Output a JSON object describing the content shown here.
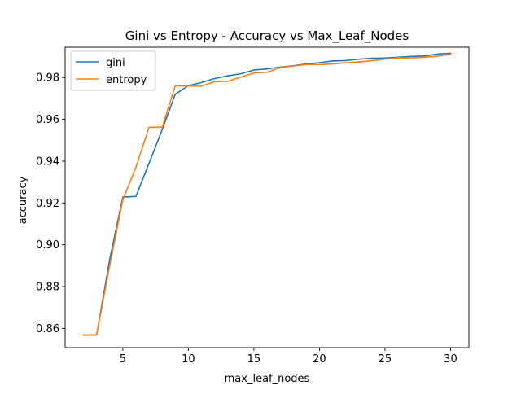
{
  "chart_data": {
    "type": "line",
    "title": "Gini vs Entropy - Accuracy vs Max_Leaf_Nodes",
    "xlabel": "max_leaf_nodes",
    "ylabel": "accuracy",
    "xlim": [
      0.6,
      31.4
    ],
    "ylim": [
      0.8508,
      0.9945
    ],
    "x_ticks": [
      5,
      10,
      15,
      20,
      25,
      30
    ],
    "x_tick_labels": [
      "5",
      "10",
      "15",
      "20",
      "25",
      "30"
    ],
    "y_ticks": [
      0.86,
      0.88,
      0.9,
      0.92,
      0.94,
      0.96,
      0.98
    ],
    "y_tick_labels": [
      "0.86",
      "0.88",
      "0.90",
      "0.92",
      "0.94",
      "0.96",
      "0.98"
    ],
    "grid": false,
    "legend_position": "top-left",
    "x": [
      2,
      3,
      4,
      5,
      6,
      7,
      8,
      9,
      10,
      11,
      12,
      13,
      14,
      15,
      16,
      17,
      18,
      19,
      20,
      21,
      22,
      23,
      24,
      25,
      26,
      27,
      28,
      29,
      30
    ],
    "series": [
      {
        "name": "gini",
        "color": "#1f77b4",
        "values": [
          0.8568,
          0.8568,
          0.893,
          0.9228,
          0.9231,
          0.939,
          0.955,
          0.972,
          0.9761,
          0.9776,
          0.9795,
          0.9808,
          0.9818,
          0.9836,
          0.9841,
          0.985,
          0.9856,
          0.9865,
          0.9871,
          0.9879,
          0.9881,
          0.9888,
          0.9892,
          0.9893,
          0.9897,
          0.9901,
          0.9903,
          0.9912,
          0.9916
        ]
      },
      {
        "name": "entropy",
        "color": "#ff7f0e",
        "values": [
          0.8568,
          0.8568,
          0.89,
          0.9215,
          0.937,
          0.9562,
          0.9562,
          0.976,
          0.9759,
          0.9759,
          0.978,
          0.9782,
          0.9802,
          0.9822,
          0.9825,
          0.9848,
          0.9855,
          0.9862,
          0.9862,
          0.9865,
          0.9871,
          0.9874,
          0.9881,
          0.9888,
          0.9894,
          0.9894,
          0.9897,
          0.9902,
          0.9911
        ]
      }
    ]
  }
}
